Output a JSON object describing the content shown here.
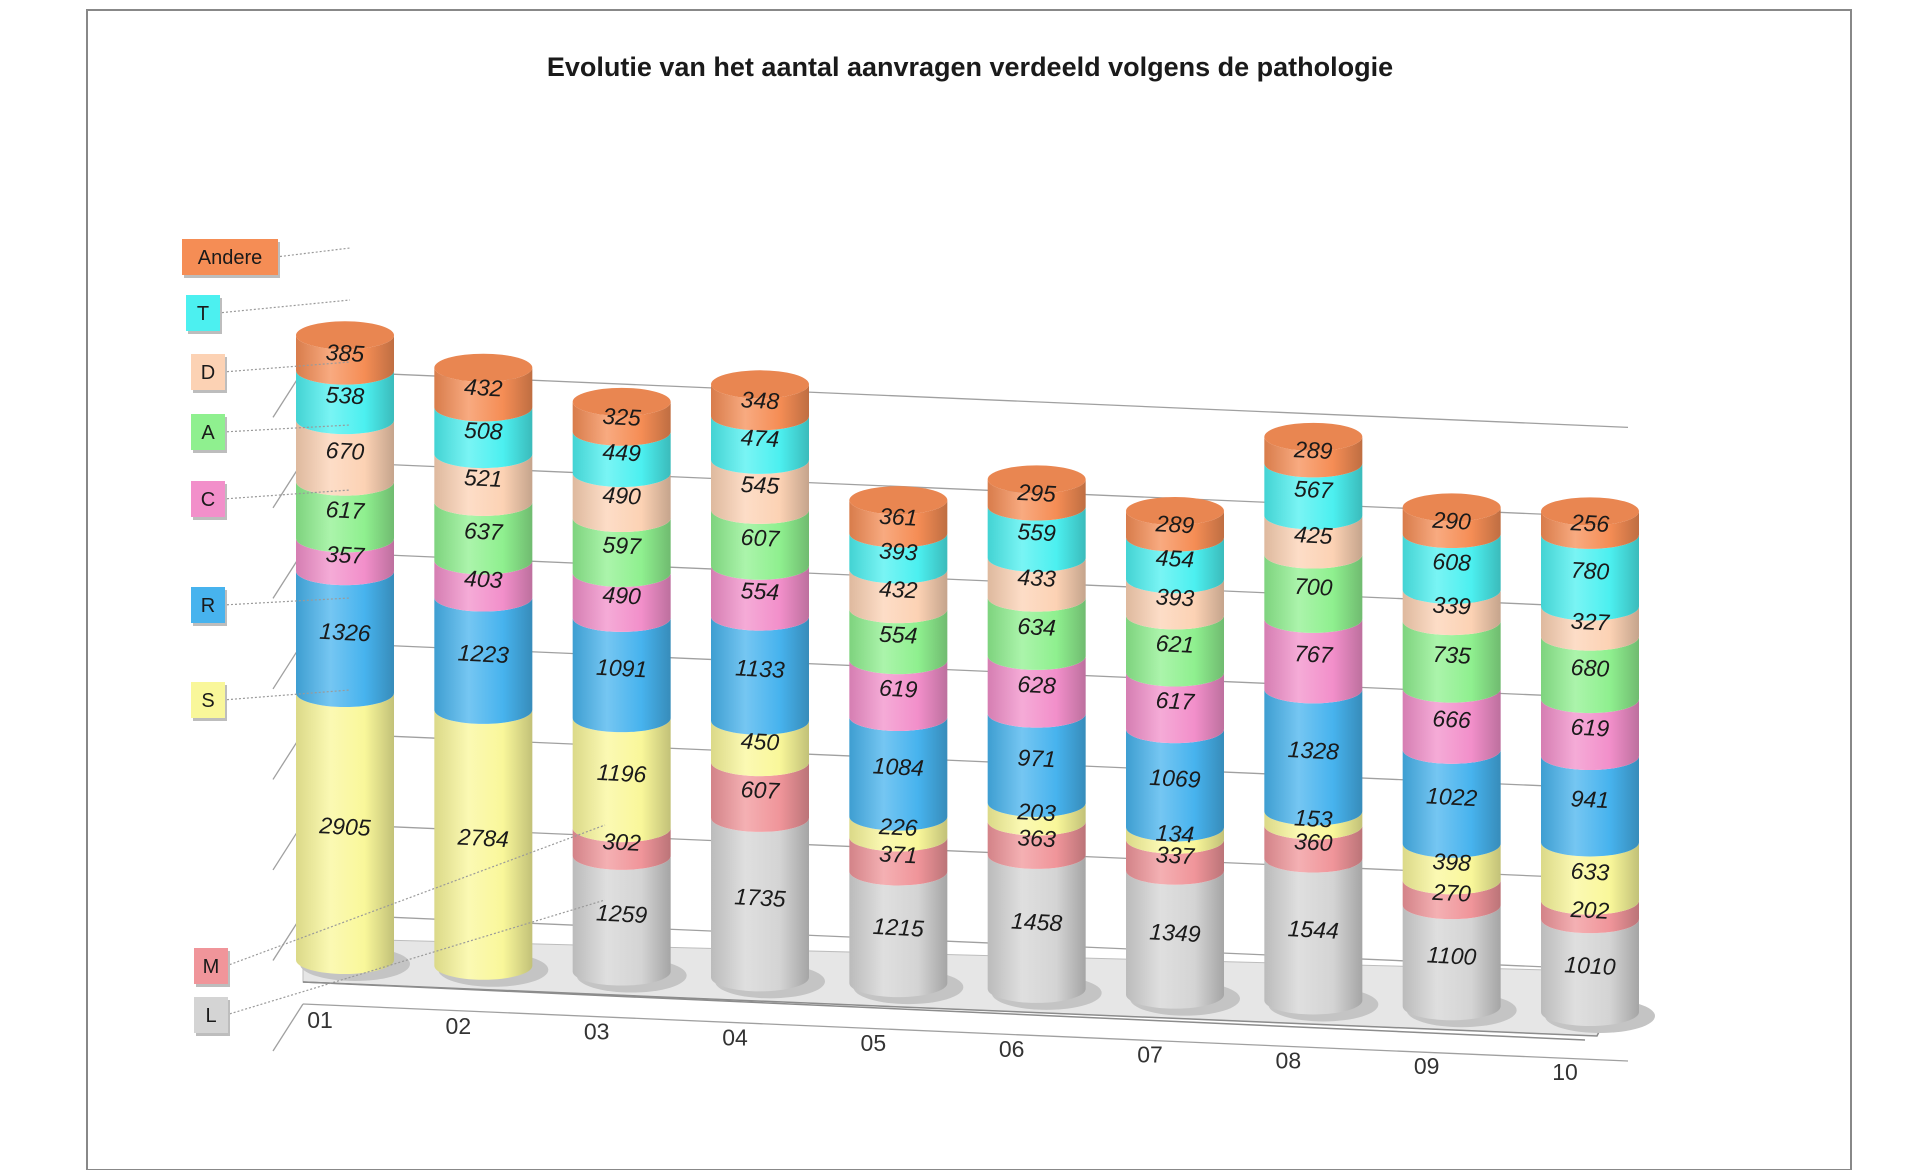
{
  "chart_data": {
    "type": "bar",
    "stacked": true,
    "style": "3d-cylinder",
    "title": "Evolutie van het aantal aanvragen verdeeld volgens de pathologie",
    "categories": [
      "01",
      "02",
      "03",
      "04",
      "05",
      "06",
      "07",
      "08",
      "09",
      "10"
    ],
    "series": [
      {
        "name": "L",
        "color": "#d4d4d4",
        "values": [
          null,
          null,
          1259,
          1735,
          1215,
          1458,
          1349,
          1544,
          1100,
          1010
        ]
      },
      {
        "name": "M",
        "color": "#f0959a",
        "values": [
          null,
          null,
          302,
          607,
          371,
          363,
          337,
          360,
          270,
          202
        ]
      },
      {
        "name": "S",
        "color": "#f9f79a",
        "values": [
          2905,
          2784,
          1196,
          450,
          226,
          203,
          134,
          153,
          398,
          633
        ]
      },
      {
        "name": "R",
        "color": "#47b3ee",
        "values": [
          1326,
          1223,
          1091,
          1133,
          1084,
          971,
          1069,
          1328,
          1022,
          941
        ]
      },
      {
        "name": "C",
        "color": "#f28fca",
        "values": [
          357,
          403,
          490,
          554,
          619,
          628,
          617,
          767,
          666,
          619
        ]
      },
      {
        "name": "A",
        "color": "#8ff08f",
        "values": [
          617,
          637,
          597,
          607,
          554,
          634,
          621,
          700,
          735,
          680
        ]
      },
      {
        "name": "D",
        "color": "#fcd2b4",
        "values": [
          670,
          521,
          490,
          545,
          432,
          433,
          393,
          425,
          339,
          327
        ]
      },
      {
        "name": "T",
        "color": "#4cf0f0",
        "values": [
          538,
          508,
          449,
          474,
          393,
          559,
          454,
          567,
          608,
          780
        ]
      },
      {
        "name": "Andere",
        "color": "#f58d55",
        "values": [
          385,
          432,
          325,
          348,
          361,
          295,
          289,
          289,
          290,
          256
        ]
      }
    ],
    "legend_position": "left",
    "grid": true
  }
}
